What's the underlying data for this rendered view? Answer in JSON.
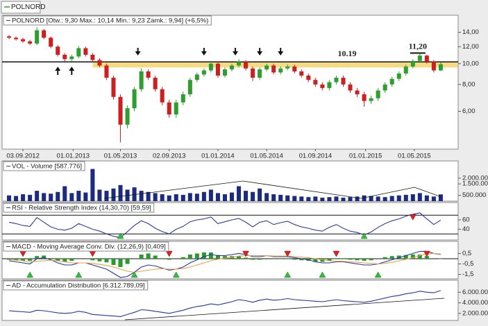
{
  "tab": "POLNORD",
  "chart_data": [
    {
      "type": "candlestick",
      "title": "POLNORD [Otw.: 9,30  Max.: 10,14  Min.: 9,23  Zamk.: 9,94] (+6,5%)",
      "open": [
        13.4,
        13.2,
        13.0,
        12.7,
        12.4,
        14.3,
        13.2,
        12.0,
        11.0,
        10.5,
        10.8,
        11.8,
        11.0,
        10.4,
        9.8,
        8.6,
        7.0,
        5.2,
        6.2,
        7.6,
        9.2,
        8.6,
        7.6,
        6.6,
        5.8,
        6.6,
        7.2,
        8.4,
        8.9,
        9.3,
        10.0,
        8.8,
        9.4,
        9.8,
        10.2,
        9.5,
        8.6,
        9.4,
        9.8,
        9.1,
        9.5,
        9.7,
        9.2,
        8.8,
        8.4,
        8.0,
        7.7,
        8.2,
        8.6,
        8.0,
        7.5,
        7.2,
        6.7,
        6.9,
        7.5,
        8.0,
        8.5,
        9.0,
        9.7,
        10.3,
        10.9,
        10.2,
        9.3
      ],
      "high": [
        13.6,
        13.4,
        13.2,
        12.9,
        14.8,
        14.5,
        13.4,
        12.2,
        11.2,
        11.0,
        12.1,
        12.0,
        11.2,
        10.6,
        10.0,
        8.8,
        7.2,
        6.4,
        7.8,
        9.5,
        9.4,
        8.8,
        7.8,
        6.8,
        6.8,
        7.4,
        8.6,
        9.1,
        9.5,
        10.3,
        10.2,
        9.6,
        10.0,
        10.5,
        10.4,
        9.7,
        9.6,
        10.0,
        10.0,
        9.7,
        9.9,
        9.9,
        9.4,
        9.0,
        8.6,
        8.2,
        8.4,
        8.8,
        8.8,
        8.2,
        7.7,
        7.4,
        7.1,
        7.7,
        8.2,
        8.7,
        9.2,
        9.9,
        10.5,
        11.2,
        11.0,
        10.4,
        10.14
      ],
      "low": [
        13.0,
        12.8,
        12.5,
        12.2,
        12.2,
        13.0,
        11.8,
        10.8,
        10.2,
        10.2,
        10.6,
        10.8,
        10.2,
        9.6,
        8.4,
        6.8,
        4.3,
        5.0,
        6.0,
        7.4,
        8.4,
        7.4,
        6.4,
        5.6,
        5.6,
        6.4,
        7.0,
        8.2,
        8.7,
        9.1,
        8.6,
        8.6,
        9.2,
        9.6,
        9.3,
        8.3,
        8.4,
        9.2,
        8.9,
        8.9,
        9.3,
        9.0,
        8.6,
        8.2,
        7.8,
        7.5,
        7.5,
        8.0,
        7.8,
        7.3,
        7.0,
        6.3,
        6.5,
        6.7,
        7.3,
        7.8,
        8.3,
        8.8,
        9.5,
        10.1,
        10.0,
        9.1,
        9.23
      ],
      "close": [
        13.2,
        13.0,
        12.7,
        12.4,
        14.3,
        13.2,
        12.0,
        11.0,
        10.5,
        10.8,
        11.8,
        11.0,
        10.4,
        9.8,
        8.6,
        7.0,
        5.2,
        6.2,
        7.6,
        9.2,
        8.6,
        7.6,
        6.6,
        5.8,
        6.6,
        7.2,
        8.4,
        8.9,
        9.3,
        10.0,
        8.8,
        9.4,
        9.8,
        10.2,
        9.5,
        8.6,
        9.4,
        9.8,
        9.1,
        9.5,
        9.7,
        9.2,
        8.8,
        8.4,
        8.0,
        7.7,
        8.2,
        8.6,
        8.0,
        7.5,
        7.2,
        6.7,
        6.9,
        7.5,
        8.0,
        8.5,
        9.0,
        9.7,
        10.3,
        10.9,
        10.2,
        9.3,
        9.94
      ],
      "up_color": "#2e9e2e",
      "down_color": "#cc2020",
      "log_scale": true,
      "ylim": [
        4.0,
        16.8
      ],
      "yticks": [
        {
          "value": 14,
          "label": "14,00"
        },
        {
          "value": 12,
          "label": "12,00"
        },
        {
          "value": 10,
          "label": "10,00"
        },
        {
          "value": 8,
          "label": "8,00"
        },
        {
          "value": 6,
          "label": "6,00"
        }
      ],
      "xlim": [
        -1,
        64.5
      ],
      "xticks": [
        {
          "value": 2,
          "label": "03.09.2012"
        },
        {
          "value": 9.2,
          "label": "01.01.2013"
        },
        {
          "value": 16,
          "label": "01.05.2013"
        },
        {
          "value": 23,
          "label": "02.09.2013"
        },
        {
          "value": 30,
          "label": "01.01.2014"
        },
        {
          "value": 37,
          "label": "01.05.2014"
        },
        {
          "value": 44,
          "label": "01.09.2014"
        },
        {
          "value": 51.2,
          "label": "01.01.2015"
        },
        {
          "value": 58.2,
          "label": "01.05.2015"
        }
      ],
      "levels": [
        {
          "value": 10.19,
          "label": "10.19"
        }
      ],
      "peak": {
        "value": 11.2,
        "label": "11,20",
        "x": [
          57.6,
          59.8
        ]
      },
      "band": {
        "from": 12,
        "low": 9.6,
        "high": 10.19,
        "color": "#f3cf5a"
      },
      "arrows_up": [
        7,
        9
      ],
      "arrows_down": [
        18.5,
        28,
        32.5,
        36,
        39
      ]
    },
    {
      "type": "bar",
      "title": "VOL - Volume [587.776]",
      "values": [
        500000,
        450000,
        600000,
        550000,
        900000,
        700000,
        650000,
        800000,
        1300000,
        700000,
        900000,
        750000,
        2800000,
        1000000,
        900000,
        1100000,
        1400000,
        1000000,
        1200000,
        900000,
        800000,
        700000,
        600000,
        500000,
        600000,
        550000,
        700000,
        650000,
        800000,
        1000000,
        700000,
        600000,
        750000,
        1300000,
        900000,
        800000,
        1100000,
        700000,
        600000,
        550000,
        500000,
        450000,
        400000,
        350000,
        400000,
        300000,
        350000,
        400000,
        300000,
        350000,
        400000,
        500000,
        450000,
        400000,
        350000,
        450000,
        500000,
        550000,
        600000,
        700000,
        500000,
        400000,
        587776
      ],
      "color": "#1c2a80",
      "ylim": [
        0,
        3500000
      ],
      "yticks": [
        {
          "value": 2000000,
          "label": "2.000.000"
        },
        {
          "value": 1500000,
          "label": "1.500.000"
        },
        {
          "value": 500000,
          "label": "500.000"
        }
      ]
    },
    {
      "type": "line",
      "title": "RSI - Relative Strength Index (14,30,70) [59,59]",
      "series": [
        {
          "color": "#2b3aa0",
          "values": [
            55,
            52,
            48,
            46,
            65,
            55,
            45,
            40,
            38,
            42,
            52,
            46,
            40,
            36,
            30,
            25,
            22,
            35,
            48,
            58,
            52,
            42,
            35,
            30,
            40,
            46,
            56,
            60,
            62,
            66,
            52,
            56,
            60,
            63,
            55,
            45,
            55,
            58,
            50,
            54,
            57,
            50,
            45,
            42,
            38,
            36,
            44,
            50,
            42,
            36,
            33,
            28,
            34,
            44,
            52,
            58,
            62,
            68,
            72,
            75,
            62,
            50,
            59.59
          ]
        }
      ],
      "ylim": [
        17,
        97
      ],
      "yticks": [
        60,
        40
      ],
      "levels": [
        70,
        30
      ],
      "buy_signals": [
        16,
        51
      ],
      "sell_signals": [
        58
      ]
    },
    {
      "type": "macd",
      "title": "MACD - Moving Average Conv. Div. (12,26,9) [0,409]",
      "histogram": {
        "color": "#2a9a2a",
        "values": [
          -0.1,
          -0.15,
          -0.2,
          -0.2,
          0.25,
          0.3,
          0.05,
          -0.2,
          -0.3,
          -0.2,
          0.0,
          0.0,
          -0.15,
          -0.25,
          -0.35,
          -0.6,
          -0.8,
          -0.5,
          0.0,
          0.4,
          0.5,
          0.3,
          0.05,
          -0.1,
          0.0,
          0.15,
          0.4,
          0.5,
          0.6,
          0.6,
          0.35,
          0.25,
          0.25,
          0.25,
          0.1,
          -0.1,
          -0.1,
          0.0,
          -0.05,
          -0.05,
          -0.05,
          -0.1,
          -0.15,
          -0.2,
          -0.3,
          -0.3,
          -0.2,
          -0.05,
          -0.05,
          -0.1,
          -0.15,
          -0.2,
          -0.15,
          0.0,
          0.15,
          0.25,
          0.3,
          0.35,
          0.4,
          0.4,
          0.25,
          0.0,
          -0.041
        ]
      },
      "series": [
        {
          "color": "#2233aa",
          "values": [
            -0.2,
            -0.3,
            -0.4,
            -0.5,
            0.0,
            0.1,
            -0.1,
            -0.4,
            -0.6,
            -0.6,
            -0.4,
            -0.4,
            -0.6,
            -0.8,
            -1.0,
            -1.4,
            -1.8,
            -1.7,
            -1.3,
            -0.8,
            -0.6,
            -0.7,
            -0.9,
            -1.1,
            -1.0,
            -0.8,
            -0.4,
            -0.1,
            0.2,
            0.4,
            0.3,
            0.3,
            0.4,
            0.5,
            0.4,
            0.2,
            0.2,
            0.3,
            0.2,
            0.2,
            0.2,
            0.1,
            0.0,
            -0.1,
            -0.3,
            -0.4,
            -0.4,
            -0.3,
            -0.3,
            -0.4,
            -0.5,
            -0.6,
            -0.6,
            -0.5,
            -0.3,
            -0.1,
            0.1,
            0.3,
            0.5,
            0.7,
            0.7,
            0.5,
            0.409
          ]
        },
        {
          "color": "#e8a040",
          "values": [
            -0.1,
            -0.15,
            -0.2,
            -0.3,
            -0.25,
            -0.2,
            -0.15,
            -0.2,
            -0.3,
            -0.4,
            -0.4,
            -0.4,
            -0.45,
            -0.55,
            -0.65,
            -0.8,
            -1.0,
            -1.2,
            -1.3,
            -1.2,
            -1.1,
            -1.0,
            -0.95,
            -1.0,
            -1.0,
            -0.95,
            -0.8,
            -0.6,
            -0.4,
            -0.2,
            -0.05,
            0.05,
            0.15,
            0.25,
            0.3,
            0.3,
            0.3,
            0.3,
            0.25,
            0.25,
            0.25,
            0.2,
            0.15,
            0.1,
            0.0,
            -0.1,
            -0.2,
            -0.25,
            -0.25,
            -0.3,
            -0.35,
            -0.4,
            -0.45,
            -0.5,
            -0.45,
            -0.35,
            -0.2,
            -0.05,
            0.1,
            0.3,
            0.45,
            0.5,
            0.45
          ]
        }
      ],
      "ylim": [
        -1.93,
        1.66
      ],
      "yticks": [
        {
          "value": 0.5,
          "label": "0,5"
        },
        {
          "value": -0.5,
          "label": "-0,5"
        },
        {
          "value": -1.5,
          "label": "-1,5"
        }
      ],
      "levels": [
        0
      ],
      "buy_signals": [
        3,
        10,
        18,
        24,
        40,
        45,
        53
      ],
      "sell_signals": [
        2,
        12,
        23,
        34,
        40,
        47,
        60
      ]
    },
    {
      "type": "line",
      "title": "AD - Accumulation Distribution [6.312.789,09]",
      "series": [
        {
          "color": "#2233aa",
          "values": [
            2500000,
            2400000,
            2300000,
            2200000,
            2600000,
            2500000,
            2300000,
            2100000,
            2000000,
            2100000,
            2400000,
            2200000,
            1800000,
            1700000,
            1600000,
            1500000,
            1400000,
            1800000,
            2200000,
            2700000,
            2600000,
            2400000,
            2200000,
            2000000,
            2300000,
            2600000,
            3000000,
            3300000,
            3500000,
            3800000,
            3600000,
            3900000,
            4200000,
            4600000,
            4400000,
            4100000,
            4500000,
            4700000,
            4500000,
            4600000,
            4800000,
            4600000,
            4500000,
            4400000,
            4300000,
            4200000,
            4400000,
            4600000,
            4400000,
            4300000,
            4200000,
            4100000,
            4300000,
            4600000,
            4900000,
            5200000,
            5400000,
            5700000,
            5900000,
            6200000,
            6000000,
            5900000,
            6312789.09
          ]
        }
      ],
      "ylim": [
        667000,
        8270000
      ],
      "yticks": [
        {
          "value": 6000000,
          "label": "6.000.000"
        },
        {
          "value": 4000000,
          "label": "4.000.000"
        },
        {
          "value": 2000000,
          "label": "2.000.000"
        }
      ]
    }
  ]
}
